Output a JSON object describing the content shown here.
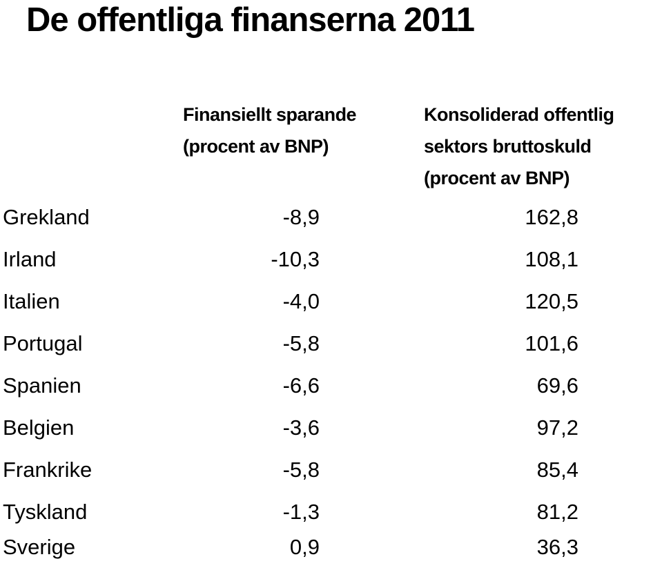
{
  "title": "De offentliga finanserna 2011",
  "columns": {
    "financial_saving": [
      "Finansiellt sparande",
      "(procent av BNP)"
    ],
    "gross_debt": [
      "Konsoliderad offentlig",
      "sektors bruttoskuld",
      "(procent av BNP)"
    ]
  },
  "rows": [
    {
      "country": "Grekland",
      "saving": "-8,9",
      "debt": "162,8"
    },
    {
      "country": "Irland",
      "saving": "-10,3",
      "debt": "108,1"
    },
    {
      "country": "Italien",
      "saving": "-4,0",
      "debt": "120,5"
    },
    {
      "country": "Portugal",
      "saving": "-5,8",
      "debt": "101,6"
    },
    {
      "country": "Spanien",
      "saving": "-6,6",
      "debt": "69,6"
    },
    {
      "country": "Belgien",
      "saving": "-3,6",
      "debt": "97,2"
    },
    {
      "country": "Frankrike",
      "saving": "-5,8",
      "debt": "85,4"
    },
    {
      "country": "Tyskland",
      "saving": "-1,3",
      "debt": "81,2"
    },
    {
      "country": "Sverige",
      "saving": "0,9",
      "debt": "36,3"
    }
  ]
}
